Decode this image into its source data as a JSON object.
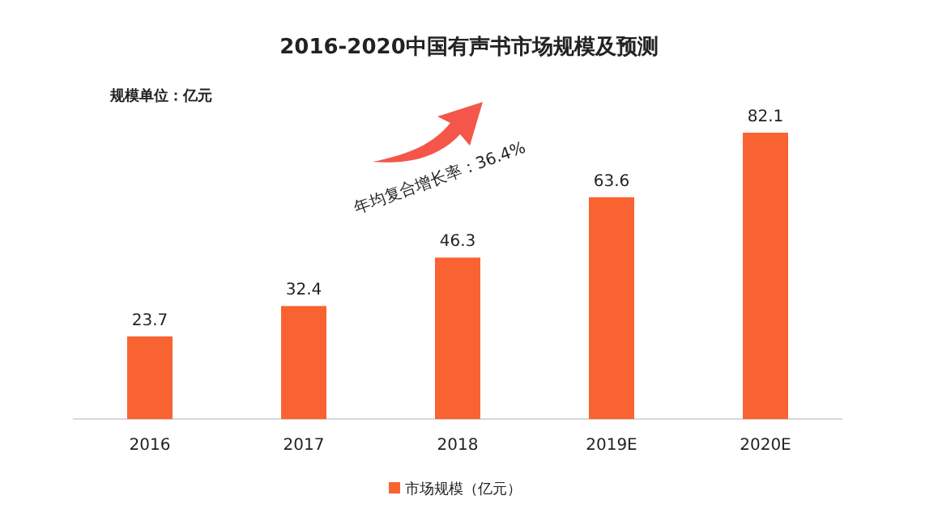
{
  "chart_data": {
    "type": "bar",
    "title": "2016-2020中国有声书市场规模及预测",
    "categories": [
      "2016",
      "2017",
      "2018",
      "2019E",
      "2020E"
    ],
    "series": [
      {
        "name": "市场规模（亿元）",
        "color": "#f96332",
        "values": [
          23.7,
          32.4,
          46.3,
          63.6,
          82.1
        ]
      }
    ],
    "data_labels": true,
    "legend": "bottom",
    "annotations": [
      "规模单位：亿元",
      "年均复合增长率：36.4%"
    ]
  }
}
